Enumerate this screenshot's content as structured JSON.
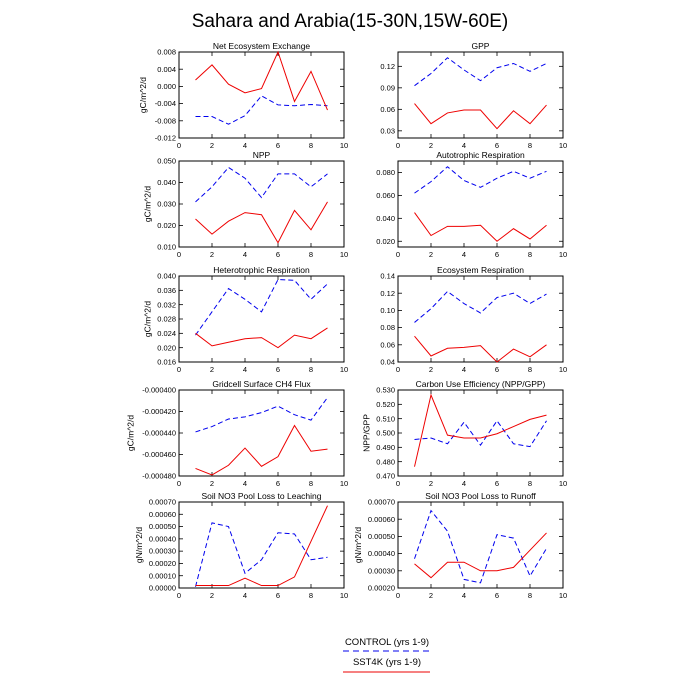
{
  "title": "Sahara and Arabia(15-30N,15W-60E)",
  "colors": {
    "control": "#0000ee",
    "sst4k": "#ee0000",
    "axis": "#000000"
  },
  "legend": {
    "control_label": "CONTROL (yrs 1-9)",
    "sst4k_label": "SST4K (yrs 1-9)"
  },
  "chart_data": [
    {
      "type": "line",
      "title": "Net Ecosystem Exchange",
      "ylabel": "gC/m^2/d",
      "xlim": [
        0,
        10
      ],
      "xticks": [
        0,
        2,
        4,
        6,
        8,
        10
      ],
      "ylim": [
        -0.012,
        0.008
      ],
      "yticks": [
        -0.012,
        -0.008,
        -0.004,
        0.0,
        0.004,
        0.008
      ],
      "ytick_labels": [
        "-0.012",
        "-0.008",
        "-0.004",
        "0.000",
        "0.004",
        "0.008"
      ],
      "x": [
        1,
        2,
        3,
        4,
        5,
        6,
        7,
        8,
        9
      ],
      "series": [
        {
          "name": "CONTROL",
          "style": "dashed",
          "values": [
            -0.007,
            -0.007,
            -0.0088,
            -0.0068,
            -0.0022,
            -0.0043,
            -0.0045,
            -0.0042,
            -0.0045
          ]
        },
        {
          "name": "SST4K",
          "style": "solid",
          "values": [
            0.0015,
            0.005,
            0.0005,
            -0.0015,
            -0.0005,
            0.008,
            -0.0035,
            0.0035,
            -0.0055
          ]
        }
      ]
    },
    {
      "type": "line",
      "title": "GPP",
      "ylabel": "",
      "xlim": [
        0,
        10
      ],
      "xticks": [
        0,
        2,
        4,
        6,
        8,
        10
      ],
      "ylim": [
        0.02,
        0.14
      ],
      "yticks": [
        0.03,
        0.06,
        0.09,
        0.12
      ],
      "ytick_labels": [
        "0.03",
        "0.06",
        "0.09",
        "0.12"
      ],
      "x": [
        1,
        2,
        3,
        4,
        5,
        6,
        7,
        8,
        9
      ],
      "series": [
        {
          "name": "CONTROL",
          "style": "dashed",
          "values": [
            0.093,
            0.11,
            0.132,
            0.115,
            0.1,
            0.118,
            0.124,
            0.113,
            0.124
          ]
        },
        {
          "name": "SST4K",
          "style": "solid",
          "values": [
            0.068,
            0.04,
            0.055,
            0.059,
            0.059,
            0.033,
            0.058,
            0.04,
            0.066
          ]
        }
      ]
    },
    {
      "type": "line",
      "title": "NPP",
      "ylabel": "gC/m^2/d",
      "xlim": [
        0,
        10
      ],
      "xticks": [
        0,
        2,
        4,
        6,
        8,
        10
      ],
      "ylim": [
        0.01,
        0.05
      ],
      "yticks": [
        0.01,
        0.02,
        0.03,
        0.04,
        0.05
      ],
      "ytick_labels": [
        "0.010",
        "0.020",
        "0.030",
        "0.040",
        "0.050"
      ],
      "x": [
        1,
        2,
        3,
        4,
        5,
        6,
        7,
        8,
        9
      ],
      "series": [
        {
          "name": "CONTROL",
          "style": "dashed",
          "values": [
            0.031,
            0.038,
            0.047,
            0.042,
            0.033,
            0.044,
            0.044,
            0.038,
            0.044
          ]
        },
        {
          "name": "SST4K",
          "style": "solid",
          "values": [
            0.023,
            0.016,
            0.022,
            0.026,
            0.025,
            0.012,
            0.027,
            0.018,
            0.031
          ]
        }
      ]
    },
    {
      "type": "line",
      "title": "Autotrophic Respiration",
      "ylabel": "",
      "xlim": [
        0,
        10
      ],
      "xticks": [
        0,
        2,
        4,
        6,
        8,
        10
      ],
      "ylim": [
        0.015,
        0.09
      ],
      "yticks": [
        0.02,
        0.04,
        0.06,
        0.08
      ],
      "ytick_labels": [
        "0.020",
        "0.040",
        "0.060",
        "0.080"
      ],
      "x": [
        1,
        2,
        3,
        4,
        5,
        6,
        7,
        8,
        9
      ],
      "series": [
        {
          "name": "CONTROL",
          "style": "dashed",
          "values": [
            0.062,
            0.072,
            0.085,
            0.073,
            0.067,
            0.075,
            0.081,
            0.075,
            0.081
          ]
        },
        {
          "name": "SST4K",
          "style": "solid",
          "values": [
            0.045,
            0.025,
            0.033,
            0.033,
            0.034,
            0.02,
            0.031,
            0.022,
            0.034
          ]
        }
      ]
    },
    {
      "type": "line",
      "title": "Heterotrophic Respiration",
      "ylabel": "gC/m^2/d",
      "xlim": [
        0,
        10
      ],
      "xticks": [
        0,
        2,
        4,
        6,
        8,
        10
      ],
      "ylim": [
        0.016,
        0.04
      ],
      "yticks": [
        0.016,
        0.02,
        0.024,
        0.028,
        0.032,
        0.036,
        0.04
      ],
      "ytick_labels": [
        "0.016",
        "0.020",
        "0.024",
        "0.028",
        "0.032",
        "0.036",
        "0.040"
      ],
      "x": [
        1,
        2,
        3,
        4,
        5,
        6,
        7,
        8,
        9
      ],
      "series": [
        {
          "name": "CONTROL",
          "style": "dashed",
          "values": [
            0.0235,
            0.03,
            0.0365,
            0.0335,
            0.03,
            0.039,
            0.0388,
            0.0335,
            0.0378
          ]
        },
        {
          "name": "SST4K",
          "style": "solid",
          "values": [
            0.024,
            0.0205,
            0.0215,
            0.0225,
            0.0228,
            0.02,
            0.0235,
            0.0225,
            0.0255
          ]
        }
      ]
    },
    {
      "type": "line",
      "title": "Ecosystem Respiration",
      "ylabel": "",
      "xlim": [
        0,
        10
      ],
      "xticks": [
        0,
        2,
        4,
        6,
        8,
        10
      ],
      "ylim": [
        0.04,
        0.14
      ],
      "yticks": [
        0.04,
        0.06,
        0.08,
        0.1,
        0.12,
        0.14
      ],
      "ytick_labels": [
        "0.04",
        "0.06",
        "0.08",
        "0.10",
        "0.12",
        "0.14"
      ],
      "x": [
        1,
        2,
        3,
        4,
        5,
        6,
        7,
        8,
        9
      ],
      "series": [
        {
          "name": "CONTROL",
          "style": "dashed",
          "values": [
            0.086,
            0.102,
            0.122,
            0.108,
            0.097,
            0.115,
            0.12,
            0.108,
            0.119
          ]
        },
        {
          "name": "SST4K",
          "style": "solid",
          "values": [
            0.07,
            0.047,
            0.056,
            0.057,
            0.059,
            0.04,
            0.055,
            0.046,
            0.06
          ]
        }
      ]
    },
    {
      "type": "line",
      "title": "Gridcell Surface CH4 Flux",
      "ylabel": "gC/m^2/d",
      "xlim": [
        0,
        10
      ],
      "xticks": [
        0,
        2,
        4,
        6,
        8,
        10
      ],
      "ylim": [
        -0.00048,
        -0.0004
      ],
      "yticks": [
        -0.00048,
        -0.00046,
        -0.00044,
        -0.00042,
        -0.0004
      ],
      "ytick_labels": [
        "-0.000480",
        "-0.000460",
        "-0.000440",
        "-0.000420",
        "-0.000400"
      ],
      "x": [
        1,
        2,
        3,
        4,
        5,
        6,
        7,
        8,
        9
      ],
      "series": [
        {
          "name": "CONTROL",
          "style": "dashed",
          "values": [
            -0.000439,
            -0.000434,
            -0.000427,
            -0.000425,
            -0.000421,
            -0.000415,
            -0.000423,
            -0.000428,
            -0.000407
          ]
        },
        {
          "name": "SST4K",
          "style": "solid",
          "values": [
            -0.000473,
            -0.000479,
            -0.00047,
            -0.000454,
            -0.000471,
            -0.000462,
            -0.000433,
            -0.000457,
            -0.000455
          ]
        }
      ]
    },
    {
      "type": "line",
      "title": "Carbon Use Efficiency (NPP/GPP)",
      "ylabel": "NPP/GPP",
      "xlim": [
        0,
        10
      ],
      "xticks": [
        0,
        2,
        4,
        6,
        8,
        10
      ],
      "ylim": [
        0.47,
        0.53
      ],
      "yticks": [
        0.47,
        0.48,
        0.49,
        0.5,
        0.51,
        0.52,
        0.53
      ],
      "ytick_labels": [
        "0.470",
        "0.480",
        "0.490",
        "0.500",
        "0.510",
        "0.520",
        "0.530"
      ],
      "x": [
        1,
        2,
        3,
        4,
        5,
        6,
        7,
        8,
        9
      ],
      "series": [
        {
          "name": "CONTROL",
          "style": "dashed",
          "values": [
            0.4955,
            0.4965,
            0.4925,
            0.5075,
            0.4915,
            0.5085,
            0.4925,
            0.4905,
            0.5085
          ]
        },
        {
          "name": "SST4K",
          "style": "solid",
          "values": [
            0.4765,
            0.5265,
            0.4985,
            0.4965,
            0.4965,
            0.4995,
            0.5045,
            0.5095,
            0.5125
          ]
        }
      ]
    },
    {
      "type": "line",
      "title": "Soil NO3 Pool Loss to Leaching",
      "ylabel": "gN/m^2/d",
      "xlim": [
        0,
        10
      ],
      "xticks": [
        0,
        2,
        4,
        6,
        8,
        10
      ],
      "ylim": [
        0.0,
        0.0007
      ],
      "yticks": [
        0.0,
        0.0001,
        0.0002,
        0.0003,
        0.0004,
        0.0005,
        0.0006,
        0.0007
      ],
      "ytick_labels": [
        "0.00000",
        "0.00010",
        "0.00020",
        "0.00030",
        "0.00040",
        "0.00050",
        "0.00060",
        "0.00070"
      ],
      "x": [
        1,
        2,
        3,
        4,
        5,
        6,
        7,
        8,
        9
      ],
      "series": [
        {
          "name": "CONTROL",
          "style": "dashed",
          "values": [
            1e-05,
            0.00053,
            0.0005,
            0.00012,
            0.00023,
            0.00045,
            0.00044,
            0.00023,
            0.00025
          ]
        },
        {
          "name": "SST4K",
          "style": "solid",
          "values": [
            2e-05,
            2e-05,
            2e-05,
            8e-05,
            2e-05,
            2e-05,
            9e-05,
            0.00038,
            0.00067
          ]
        }
      ]
    },
    {
      "type": "line",
      "title": "Soil NO3 Pool Loss to Runoff",
      "ylabel": "gN/m^2/d",
      "xlim": [
        0,
        10
      ],
      "xticks": [
        0,
        2,
        4,
        6,
        8,
        10
      ],
      "ylim": [
        0.0002,
        0.0007
      ],
      "yticks": [
        0.0002,
        0.0003,
        0.0004,
        0.0005,
        0.0006,
        0.0007
      ],
      "ytick_labels": [
        "0.00020",
        "0.00030",
        "0.00040",
        "0.00050",
        "0.00060",
        "0.00070"
      ],
      "x": [
        1,
        2,
        3,
        4,
        5,
        6,
        7,
        8,
        9
      ],
      "series": [
        {
          "name": "CONTROL",
          "style": "dashed",
          "values": [
            0.00037,
            0.00065,
            0.00053,
            0.00025,
            0.00023,
            0.00051,
            0.00049,
            0.00027,
            0.00043
          ]
        },
        {
          "name": "SST4K",
          "style": "solid",
          "values": [
            0.00034,
            0.00026,
            0.00035,
            0.00035,
            0.0003,
            0.0003,
            0.00032,
            0.00042,
            0.00052
          ]
        }
      ]
    }
  ]
}
